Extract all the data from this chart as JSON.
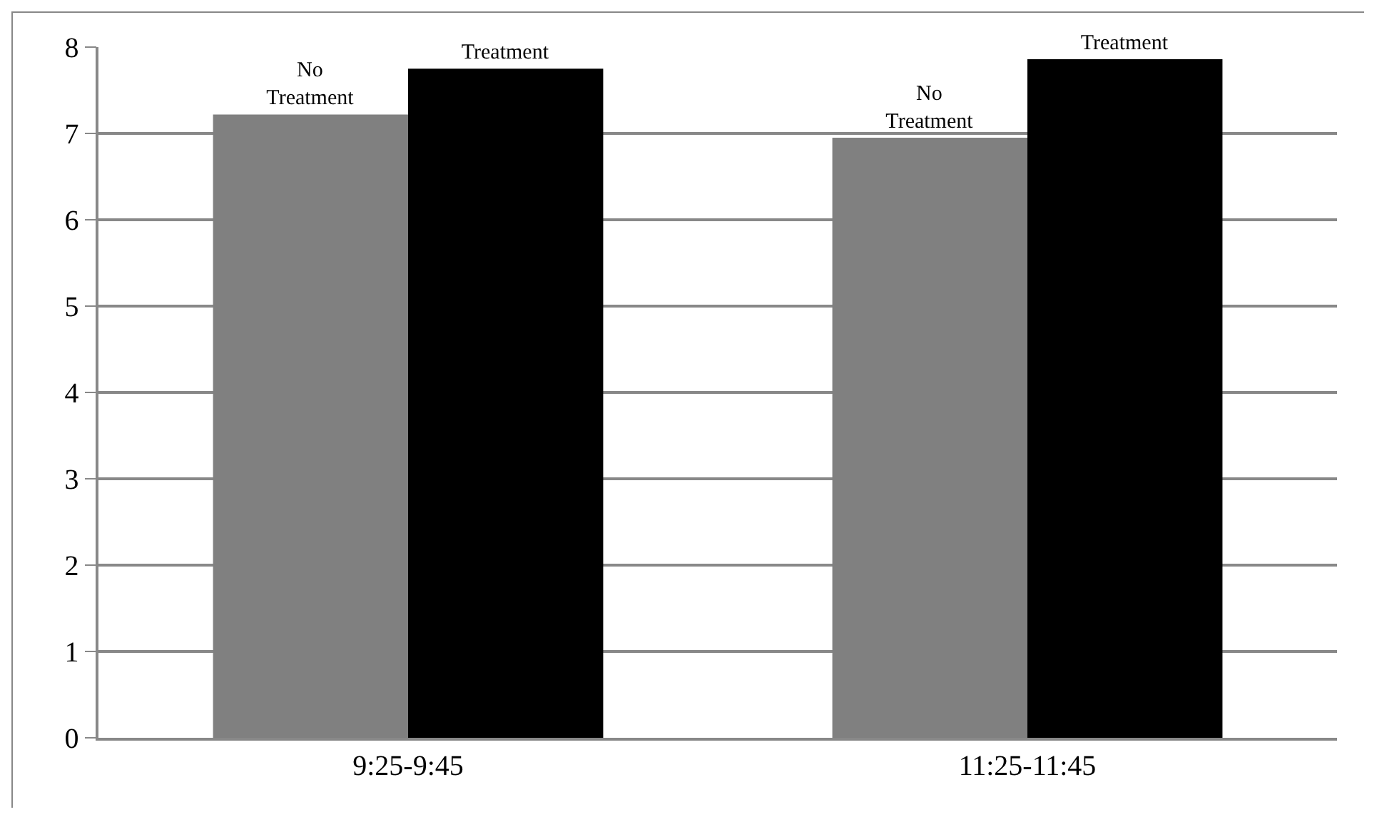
{
  "chart_data": {
    "type": "bar",
    "categories": [
      "9:25-9:45",
      "11:25-11:45"
    ],
    "series": [
      {
        "name": "No Treatment",
        "color": "#808080",
        "values": [
          7.22,
          6.95
        ]
      },
      {
        "name": "Treatment",
        "color": "#000000",
        "values": [
          7.75,
          7.86
        ]
      }
    ],
    "ylim": [
      0,
      8
    ],
    "yticks": [
      0,
      1,
      2,
      3,
      4,
      5,
      6,
      7,
      8
    ],
    "grid": "y",
    "legend": false
  }
}
